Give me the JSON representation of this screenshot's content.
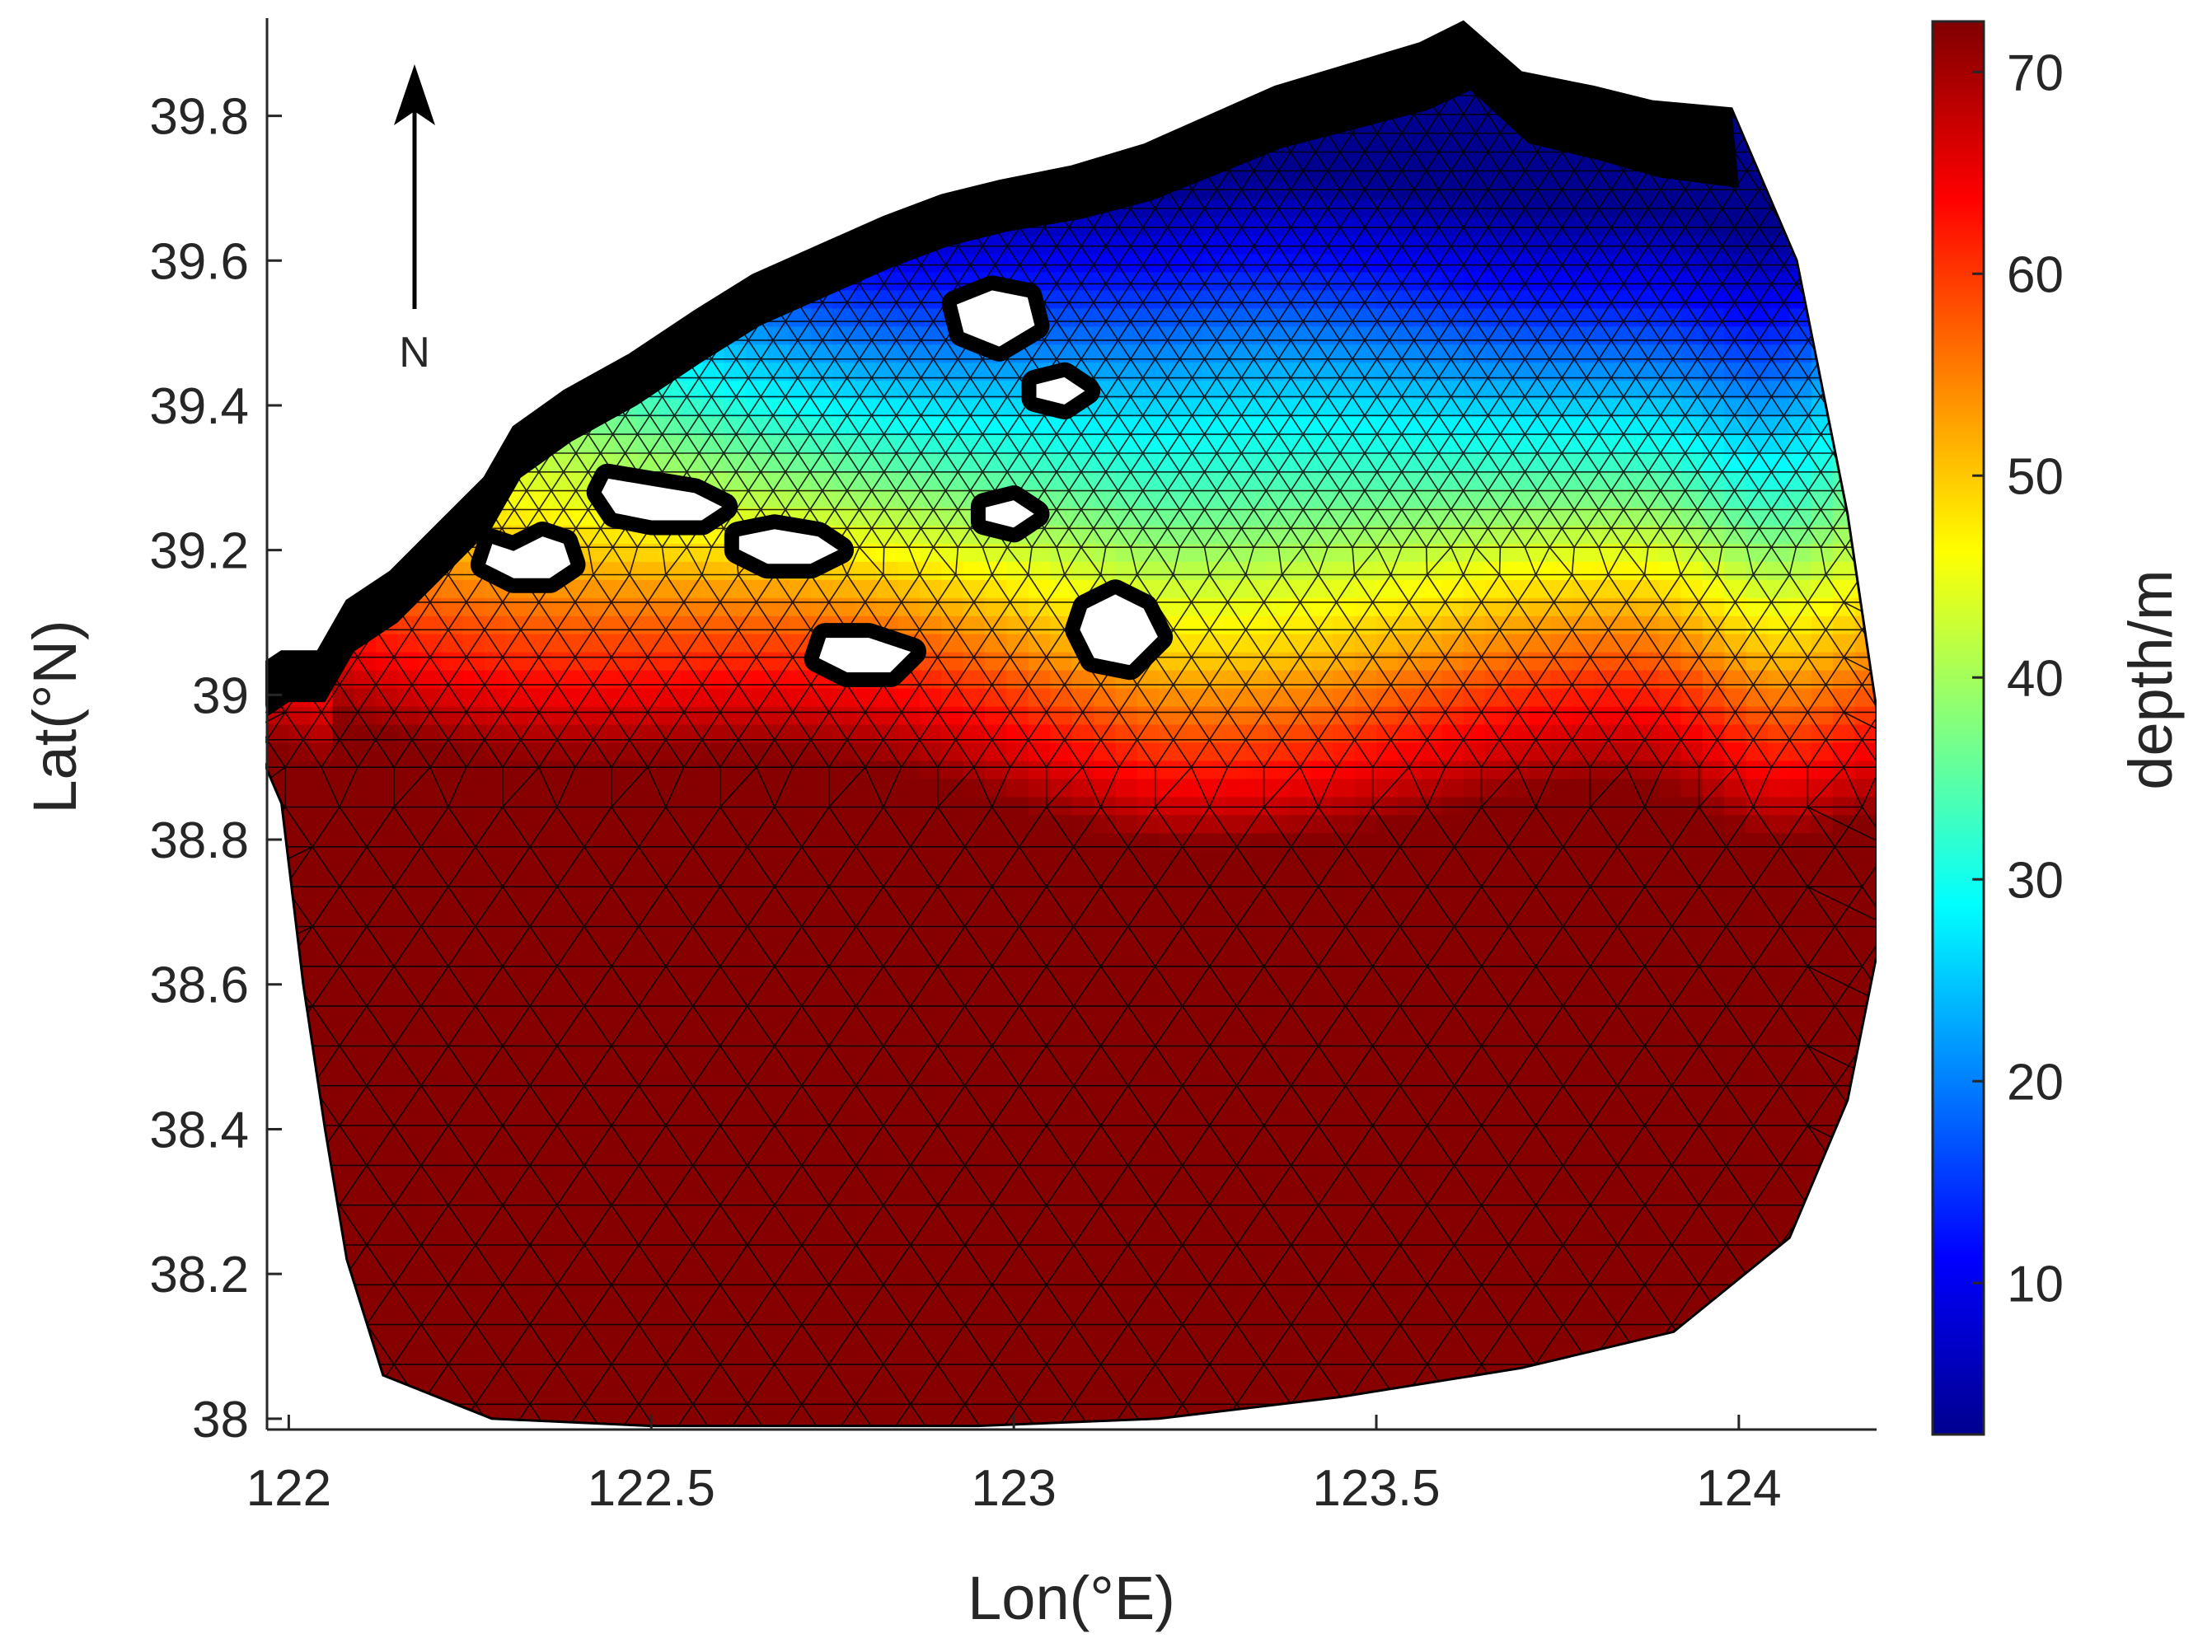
{
  "map": {
    "xlabel": "Lon(°E)",
    "ylabel": "Lat(°N)",
    "x_range": [
      121.97,
      124.19
    ],
    "y_range": [
      37.985,
      39.935
    ],
    "x_ticks": [
      {
        "value": 122,
        "label": "122"
      },
      {
        "value": 122.5,
        "label": "122.5"
      },
      {
        "value": 123,
        "label": "123"
      },
      {
        "value": 123.5,
        "label": "123.5"
      },
      {
        "value": 124,
        "label": "124"
      }
    ],
    "y_ticks": [
      {
        "value": 38,
        "label": "38"
      },
      {
        "value": 38.2,
        "label": "38.2"
      },
      {
        "value": 38.4,
        "label": "38.4"
      },
      {
        "value": 38.6,
        "label": "38.6"
      },
      {
        "value": 38.8,
        "label": "38.8"
      },
      {
        "value": 39,
        "label": "39"
      },
      {
        "value": 39.2,
        "label": "39.2"
      },
      {
        "value": 39.4,
        "label": "39.4"
      },
      {
        "value": 39.6,
        "label": "39.6"
      },
      {
        "value": 39.8,
        "label": "39.8"
      }
    ],
    "north_arrow_label": "N",
    "land_color": "#000000",
    "mesh_line_color": "#000000",
    "domain_boundary": [
      [
        121.96,
        39.04
      ],
      [
        121.99,
        39.06
      ],
      [
        122.04,
        39.06
      ],
      [
        122.08,
        39.13
      ],
      [
        122.14,
        39.17
      ],
      [
        122.2,
        39.23
      ],
      [
        122.27,
        39.3
      ],
      [
        122.31,
        39.37
      ],
      [
        122.38,
        39.42
      ],
      [
        122.47,
        39.47
      ],
      [
        122.56,
        39.53
      ],
      [
        122.64,
        39.58
      ],
      [
        122.73,
        39.62
      ],
      [
        122.82,
        39.66
      ],
      [
        122.9,
        39.69
      ],
      [
        122.98,
        39.71
      ],
      [
        123.08,
        39.73
      ],
      [
        123.18,
        39.76
      ],
      [
        123.27,
        39.8
      ],
      [
        123.36,
        39.84
      ],
      [
        123.46,
        39.87
      ],
      [
        123.56,
        39.9
      ],
      [
        123.62,
        39.93
      ],
      [
        123.7,
        39.86
      ],
      [
        123.8,
        39.84
      ],
      [
        123.88,
        39.82
      ],
      [
        123.99,
        39.81
      ],
      [
        124.08,
        39.6
      ],
      [
        124.15,
        39.25
      ],
      [
        124.19,
        38.98
      ],
      [
        124.19,
        38.64
      ],
      [
        124.15,
        38.44
      ],
      [
        124.07,
        38.25
      ],
      [
        123.91,
        38.12
      ],
      [
        123.7,
        38.07
      ],
      [
        123.45,
        38.03
      ],
      [
        123.2,
        38.0
      ],
      [
        122.95,
        37.99
      ],
      [
        122.72,
        37.99
      ],
      [
        122.5,
        37.99
      ],
      [
        122.28,
        38.0
      ],
      [
        122.13,
        38.06
      ],
      [
        122.08,
        38.22
      ],
      [
        122.05,
        38.4
      ],
      [
        122.02,
        38.6
      ],
      [
        121.99,
        38.85
      ],
      [
        121.96,
        38.92
      ]
    ],
    "islands": [
      [
        [
          122.28,
          39.21
        ],
        [
          122.31,
          39.2
        ],
        [
          122.35,
          39.22
        ],
        [
          122.38,
          39.21
        ],
        [
          122.39,
          39.18
        ],
        [
          122.36,
          39.16
        ],
        [
          122.31,
          39.16
        ],
        [
          122.27,
          39.18
        ]
      ],
      [
        [
          122.44,
          39.3
        ],
        [
          122.5,
          39.29
        ],
        [
          122.56,
          39.28
        ],
        [
          122.6,
          39.26
        ],
        [
          122.57,
          39.24
        ],
        [
          122.5,
          39.24
        ],
        [
          122.45,
          39.25
        ],
        [
          122.43,
          39.28
        ]
      ],
      [
        [
          122.62,
          39.22
        ],
        [
          122.67,
          39.23
        ],
        [
          122.73,
          39.22
        ],
        [
          122.76,
          39.2
        ],
        [
          122.72,
          39.18
        ],
        [
          122.66,
          39.18
        ],
        [
          122.62,
          39.2
        ]
      ],
      [
        [
          122.74,
          39.08
        ],
        [
          122.8,
          39.08
        ],
        [
          122.86,
          39.06
        ],
        [
          122.83,
          39.03
        ],
        [
          122.77,
          39.03
        ],
        [
          122.73,
          39.05
        ]
      ],
      [
        [
          122.92,
          39.54
        ],
        [
          122.97,
          39.56
        ],
        [
          123.02,
          39.55
        ],
        [
          123.03,
          39.51
        ],
        [
          122.98,
          39.48
        ],
        [
          122.93,
          39.5
        ]
      ],
      [
        [
          123.03,
          39.43
        ],
        [
          123.07,
          39.44
        ],
        [
          123.1,
          39.42
        ],
        [
          123.07,
          39.4
        ],
        [
          123.03,
          39.41
        ]
      ],
      [
        [
          122.96,
          39.26
        ],
        [
          123.0,
          39.27
        ],
        [
          123.03,
          39.25
        ],
        [
          123.0,
          39.23
        ],
        [
          122.96,
          39.24
        ]
      ],
      [
        [
          123.1,
          39.12
        ],
        [
          123.14,
          39.14
        ],
        [
          123.18,
          39.12
        ],
        [
          123.2,
          39.08
        ],
        [
          123.16,
          39.04
        ],
        [
          123.11,
          39.05
        ],
        [
          123.09,
          39.09
        ]
      ]
    ]
  },
  "colorbar": {
    "label": "depth/m",
    "range": [
      2.5,
      72.5
    ],
    "ticks": [
      {
        "value": 10,
        "label": "10"
      },
      {
        "value": 20,
        "label": "20"
      },
      {
        "value": 30,
        "label": "30"
      },
      {
        "value": 40,
        "label": "40"
      },
      {
        "value": 50,
        "label": "50"
      },
      {
        "value": 60,
        "label": "60"
      },
      {
        "value": 70,
        "label": "70"
      }
    ],
    "colormap": [
      "#00008f",
      "#0000ff",
      "#0080ff",
      "#00ffff",
      "#80ff80",
      "#ffff00",
      "#ff8000",
      "#ff0000",
      "#800000"
    ]
  }
}
